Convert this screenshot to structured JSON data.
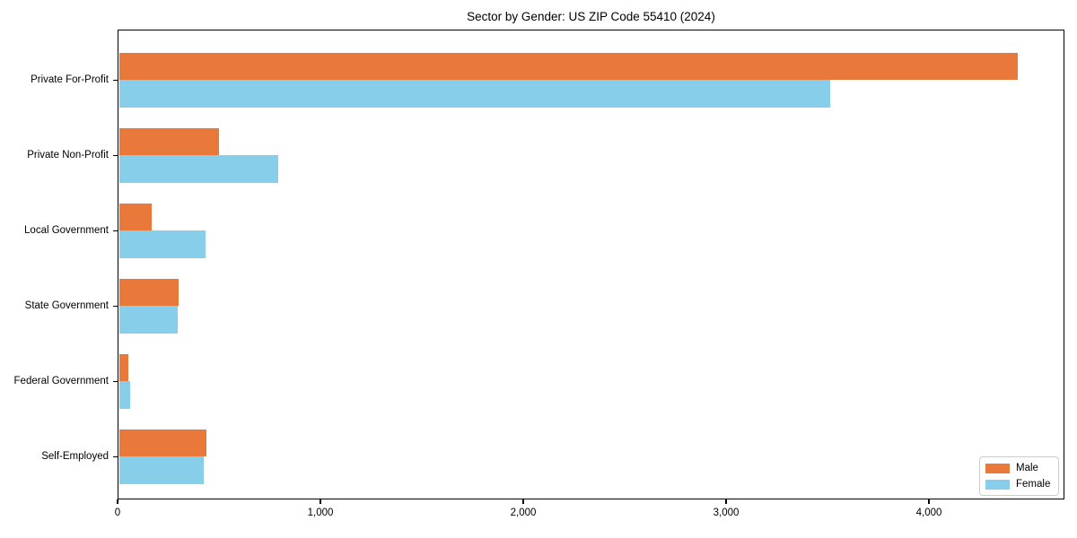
{
  "chart_data": {
    "type": "bar",
    "orientation": "horizontal",
    "title": "Sector by Gender: US ZIP Code 55410 (2024)",
    "xlabel": "",
    "ylabel": "",
    "categories": [
      "Private For-Profit",
      "Private Non-Profit",
      "Local Government",
      "State Government",
      "Federal Government",
      "Self-Employed"
    ],
    "series": [
      {
        "name": "Male",
        "color": "#e8793b",
        "values": [
          4440,
          500,
          170,
          300,
          55,
          440
        ]
      },
      {
        "name": "Female",
        "color": "#87ceeb",
        "values": [
          3515,
          790,
          435,
          295,
          60,
          425
        ]
      }
    ],
    "xlim": [
      0,
      4668
    ],
    "x_ticks": [
      {
        "value": 0,
        "label": "0"
      },
      {
        "value": 1000,
        "label": "1,000"
      },
      {
        "value": 2000,
        "label": "2,000"
      },
      {
        "value": 3000,
        "label": "3,000"
      },
      {
        "value": 4000,
        "label": "4,000"
      }
    ],
    "grid": false,
    "legend_position": "lower right"
  }
}
